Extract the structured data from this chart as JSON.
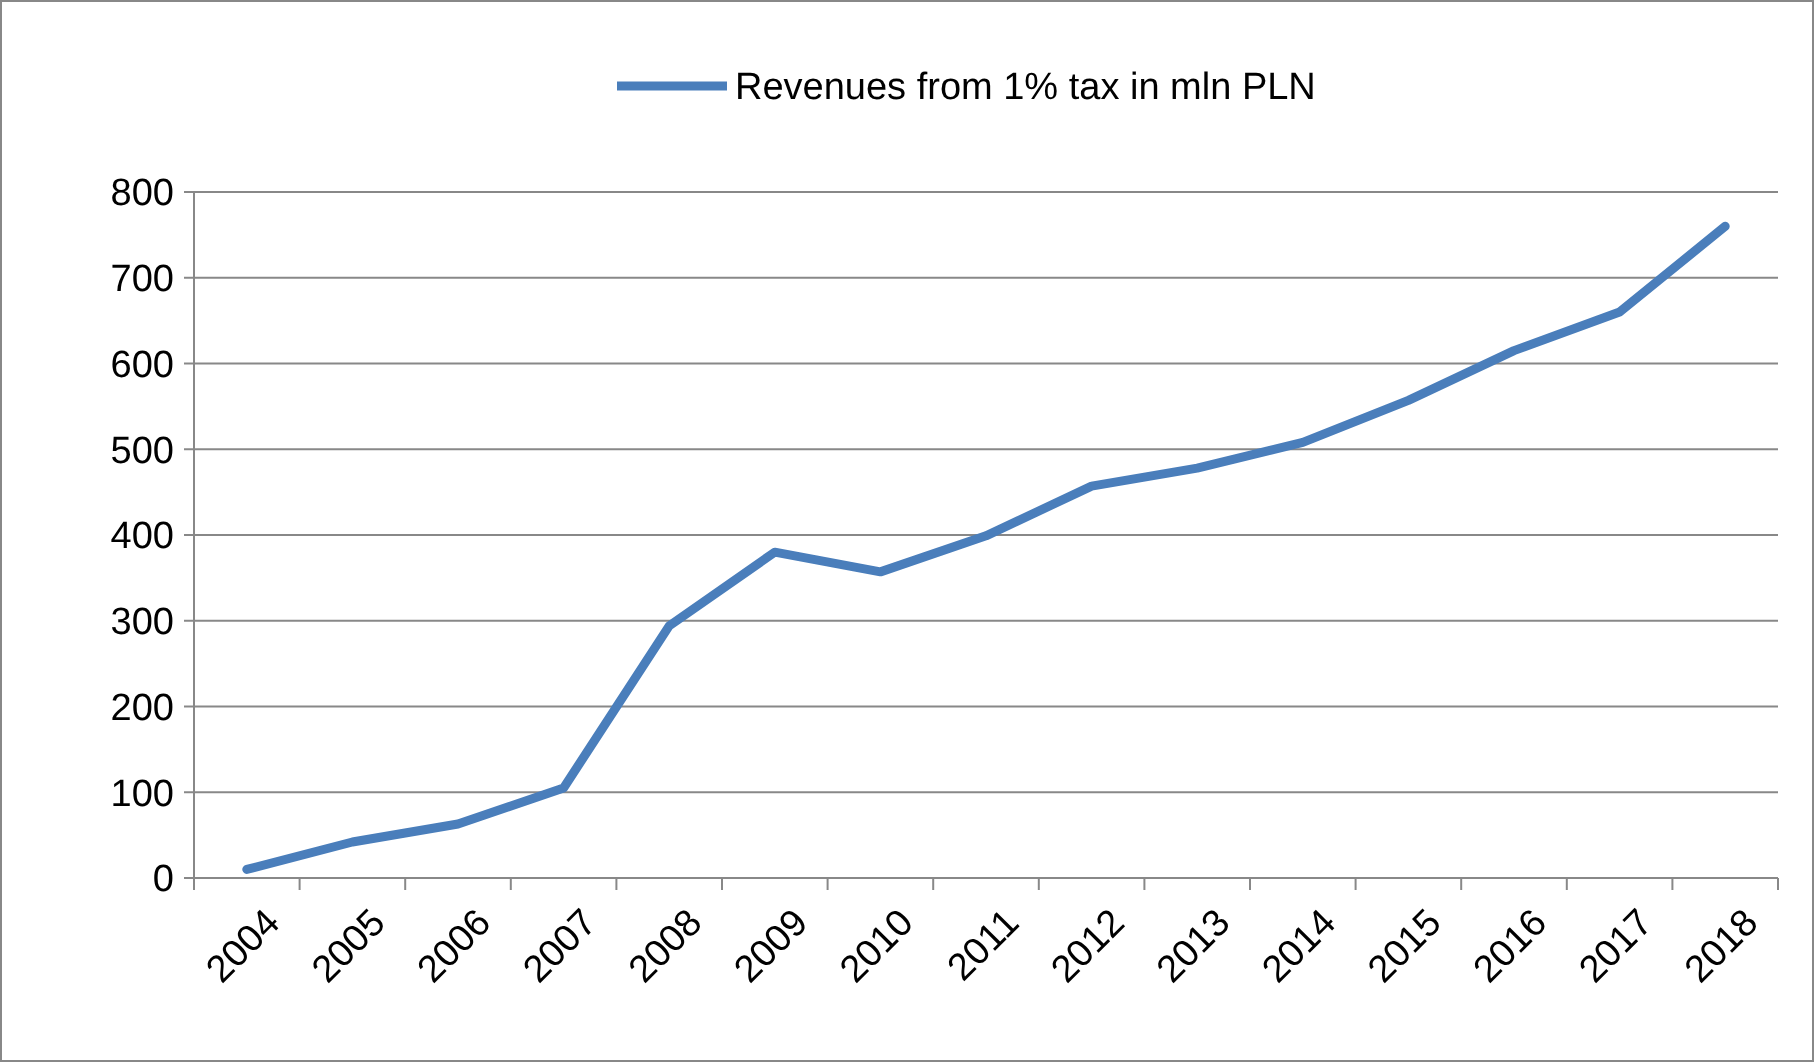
{
  "chart_data": {
    "type": "line",
    "categories": [
      "2004",
      "2005",
      "2006",
      "2007",
      "2008",
      "2009",
      "2010",
      "2011",
      "2012",
      "2013",
      "2014",
      "2015",
      "2016",
      "2017",
      "2018"
    ],
    "series": [
      {
        "name": "Revenues from 1% tax in mln PLN",
        "color": "#4a7ebb",
        "values": [
          10,
          42,
          63,
          105,
          294,
          380,
          357,
          399,
          457,
          478,
          508,
          557,
          615,
          660,
          760
        ]
      }
    ],
    "ylim": [
      0,
      800
    ],
    "yticks": [
      0,
      100,
      200,
      300,
      400,
      500,
      600,
      700,
      800
    ],
    "grid": "y",
    "legend": "top",
    "marker": "none",
    "line_style": "solid"
  }
}
